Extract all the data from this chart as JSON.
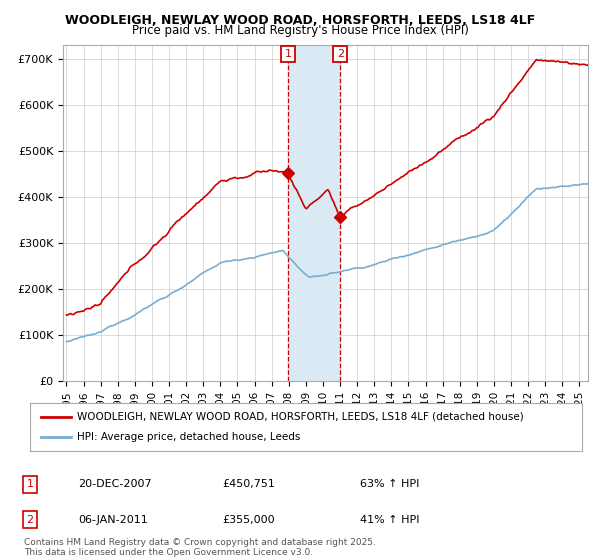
{
  "title": "WOODLEIGH, NEWLAY WOOD ROAD, HORSFORTH, LEEDS, LS18 4LF",
  "subtitle": "Price paid vs. HM Land Registry's House Price Index (HPI)",
  "ylabel_ticks": [
    "£0",
    "£100K",
    "£200K",
    "£300K",
    "£400K",
    "£500K",
    "£600K",
    "£700K"
  ],
  "ytick_vals": [
    0,
    100000,
    200000,
    300000,
    400000,
    500000,
    600000,
    700000
  ],
  "ylim": [
    0,
    730000
  ],
  "xlim_start": 1994.8,
  "xlim_end": 2025.5,
  "xticks": [
    1995,
    1996,
    1997,
    1998,
    1999,
    2000,
    2001,
    2002,
    2003,
    2004,
    2005,
    2006,
    2007,
    2008,
    2009,
    2010,
    2011,
    2012,
    2013,
    2014,
    2015,
    2016,
    2017,
    2018,
    2019,
    2020,
    2021,
    2022,
    2023,
    2024,
    2025
  ],
  "transaction1_x": 2007.97,
  "transaction1_y": 450751,
  "transaction2_x": 2011.02,
  "transaction2_y": 355000,
  "transaction1_date": "20-DEC-2007",
  "transaction1_price": "£450,751",
  "transaction1_hpi": "63% ↑ HPI",
  "transaction2_date": "06-JAN-2011",
  "transaction2_price": "£355,000",
  "transaction2_hpi": "41% ↑ HPI",
  "legend_line1": "WOODLEIGH, NEWLAY WOOD ROAD, HORSFORTH, LEEDS, LS18 4LF (detached house)",
  "legend_line2": "HPI: Average price, detached house, Leeds",
  "copyright_text": "Contains HM Land Registry data © Crown copyright and database right 2025.\nThis data is licensed under the Open Government Licence v3.0.",
  "property_color": "#cc0000",
  "hpi_color": "#7aadcf",
  "shade_color": "#daeaf5",
  "vline_color": "#cc0000",
  "background_color": "#ffffff",
  "grid_color": "#cccccc"
}
